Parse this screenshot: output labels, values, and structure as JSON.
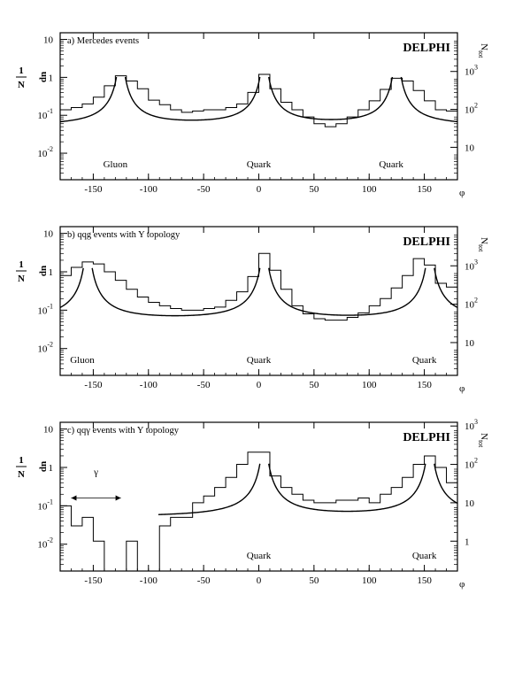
{
  "chart_data": [
    {
      "type": "line",
      "panel_title": "a)    Mercedes events",
      "brand": "DELPHI",
      "xlabel": "φ",
      "ylabel_num": "1",
      "ylabel_den": "N",
      "ylabel_dn": "dn",
      "right_axis_title": "N",
      "right_axis_sub": "tot",
      "xlim": [
        -180,
        180
      ],
      "ylim": [
        0.002,
        15
      ],
      "y_scale": "log",
      "x_ticks": [
        -150,
        -100,
        -50,
        0,
        50,
        100,
        150
      ],
      "y_ticks": [
        {
          "value": 0.01,
          "base": "10",
          "exp": "-2"
        },
        {
          "value": 0.1,
          "base": "10",
          "exp": "-1"
        },
        {
          "value": 1,
          "base": "1",
          "exp": ""
        },
        {
          "value": 10,
          "base": "10",
          "exp": ""
        }
      ],
      "right_ticks": [
        {
          "value": 0.0143,
          "base": "10",
          "exp": ""
        },
        {
          "value": 0.143,
          "base": "10",
          "exp": "2"
        },
        {
          "value": 1.43,
          "base": "10",
          "exp": "3"
        }
      ],
      "region_labels": [
        {
          "text": "Gluon",
          "x": -130
        },
        {
          "text": "Quark",
          "x": 0
        },
        {
          "text": "Quark",
          "x": 120
        }
      ],
      "histogram": {
        "edges": [
          -180,
          -170,
          -160,
          -150,
          -140,
          -130,
          -120,
          -110,
          -100,
          -90,
          -80,
          -70,
          -60,
          -50,
          -40,
          -30,
          -20,
          -10,
          0,
          10,
          20,
          30,
          40,
          50,
          60,
          70,
          80,
          90,
          100,
          110,
          120,
          130,
          140,
          150,
          160,
          170,
          180
        ],
        "values": [
          0.14,
          0.16,
          0.2,
          0.3,
          0.6,
          1.1,
          0.8,
          0.5,
          0.25,
          0.19,
          0.14,
          0.12,
          0.13,
          0.14,
          0.14,
          0.16,
          0.2,
          0.4,
          1.2,
          0.5,
          0.22,
          0.14,
          0.09,
          0.06,
          0.05,
          0.06,
          0.09,
          0.14,
          0.24,
          0.48,
          0.95,
          0.8,
          0.45,
          0.24,
          0.14,
          0.13
        ]
      },
      "curve_peaks": [
        -125,
        5,
        125
      ],
      "curve_width": 35
    },
    {
      "type": "line",
      "panel_title": "b)    qqg events with Y topology",
      "brand": "DELPHI",
      "xlabel": "φ",
      "ylabel_num": "1",
      "ylabel_den": "N",
      "ylabel_dn": "dn",
      "right_axis_title": "N",
      "right_axis_sub": "tot",
      "xlim": [
        -180,
        180
      ],
      "ylim": [
        0.002,
        15
      ],
      "y_scale": "log",
      "x_ticks": [
        -150,
        -100,
        -50,
        0,
        50,
        100,
        150
      ],
      "y_ticks": [
        {
          "value": 0.01,
          "base": "10",
          "exp": "-2"
        },
        {
          "value": 0.1,
          "base": "10",
          "exp": "-1"
        },
        {
          "value": 1,
          "base": "1",
          "exp": ""
        },
        {
          "value": 10,
          "base": "10",
          "exp": ""
        }
      ],
      "right_ticks": [
        {
          "value": 0.0143,
          "base": "10",
          "exp": ""
        },
        {
          "value": 0.143,
          "base": "10",
          "exp": "2"
        },
        {
          "value": 1.43,
          "base": "10",
          "exp": "3"
        }
      ],
      "region_labels": [
        {
          "text": "Gluon",
          "x": -160
        },
        {
          "text": "Quark",
          "x": 0
        },
        {
          "text": "Quark",
          "x": 150
        }
      ],
      "histogram": {
        "edges": [
          -180,
          -170,
          -160,
          -150,
          -140,
          -130,
          -120,
          -110,
          -100,
          -90,
          -80,
          -70,
          -60,
          -50,
          -40,
          -30,
          -20,
          -10,
          0,
          10,
          20,
          30,
          40,
          50,
          60,
          70,
          80,
          90,
          100,
          110,
          120,
          130,
          140,
          150,
          160,
          170,
          180
        ],
        "values": [
          0.8,
          1.3,
          1.8,
          1.6,
          1.0,
          0.6,
          0.35,
          0.22,
          0.16,
          0.13,
          0.11,
          0.1,
          0.1,
          0.11,
          0.12,
          0.18,
          0.3,
          0.75,
          3.0,
          1.1,
          0.35,
          0.13,
          0.08,
          0.06,
          0.055,
          0.055,
          0.065,
          0.085,
          0.13,
          0.2,
          0.38,
          0.8,
          2.2,
          1.5,
          0.5,
          0.4
        ]
      },
      "curve_peaks": [
        -155,
        5,
        155
      ],
      "curve_width": 40
    },
    {
      "type": "line",
      "panel_title": "c)    qqγ events with Y topology",
      "brand": "DELPHI",
      "xlabel": "φ",
      "ylabel_num": "1",
      "ylabel_den": "N",
      "ylabel_dn": "dn",
      "right_axis_title": "N",
      "right_axis_sub": "tot",
      "xlim": [
        -180,
        180
      ],
      "ylim": [
        0.002,
        15
      ],
      "y_scale": "log",
      "x_ticks": [
        -150,
        -100,
        -50,
        0,
        50,
        100,
        150
      ],
      "y_ticks": [
        {
          "value": 0.01,
          "base": "10",
          "exp": "-2"
        },
        {
          "value": 0.1,
          "base": "10",
          "exp": "-1"
        },
        {
          "value": 1,
          "base": "1",
          "exp": ""
        },
        {
          "value": 10,
          "base": "10",
          "exp": ""
        }
      ],
      "right_ticks": [
        {
          "value": 0.012,
          "base": "1",
          "exp": ""
        },
        {
          "value": 0.12,
          "base": "10",
          "exp": ""
        },
        {
          "value": 1.2,
          "base": "10",
          "exp": "2"
        },
        {
          "value": 12,
          "base": "10",
          "exp": "3"
        }
      ],
      "region_labels": [
        {
          "text": "Quark",
          "x": 0
        },
        {
          "text": "Quark",
          "x": 150
        }
      ],
      "gamma_label": "γ",
      "gamma_arrow": [
        -170,
        -125
      ],
      "histogram": {
        "edges": [
          -180,
          -170,
          -160,
          -150,
          -140,
          -130,
          -120,
          -110,
          -100,
          -90,
          -80,
          -70,
          -60,
          -50,
          -40,
          -30,
          -20,
          -10,
          0,
          10,
          20,
          30,
          40,
          50,
          60,
          70,
          80,
          90,
          100,
          110,
          120,
          130,
          140,
          150,
          160,
          170,
          180
        ],
        "values": [
          0.1,
          0.03,
          0.05,
          0.012,
          0.002,
          0.002,
          0.012,
          0.002,
          0.002,
          0.03,
          0.05,
          0.05,
          0.12,
          0.18,
          0.3,
          0.55,
          1.2,
          2.5,
          2.5,
          0.6,
          0.3,
          0.2,
          0.14,
          0.12,
          0.12,
          0.14,
          0.14,
          0.16,
          0.12,
          0.2,
          0.3,
          0.55,
          1.2,
          2.0,
          1.0,
          0.4
        ]
      },
      "curve_peaks": [
        5,
        155
      ],
      "curve_start": -95,
      "curve_width": 40
    }
  ]
}
